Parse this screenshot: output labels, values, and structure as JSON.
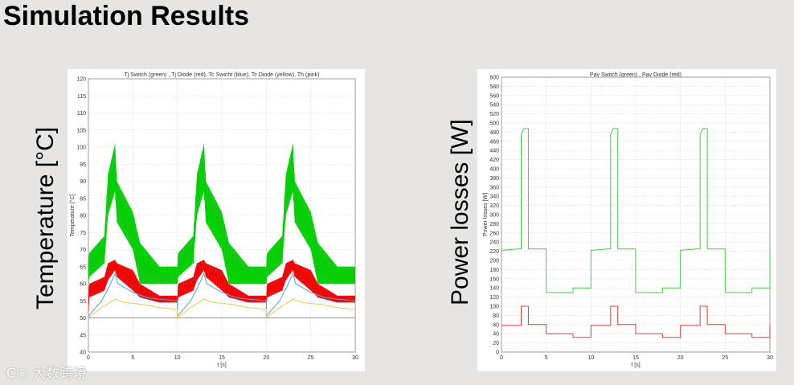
{
  "slide": {
    "title": "Simulation Results"
  },
  "labels": {
    "left_outer": "Temperature [°C]",
    "right_outer": "Power losses [W]"
  },
  "watermark": {
    "text": "大数跨境",
    "logo_text": "C○"
  },
  "chart_data": [
    {
      "id": "temperature",
      "type": "line",
      "title": "Tj Switch (green) , Tj Diode (red), Tc Swicht (blue), Tc Diode (yellow), Th (pink)",
      "xlabel": "t [s]",
      "ylabel": "Temperature [°C]",
      "xlim": [
        0,
        30
      ],
      "ylim": [
        40,
        120
      ],
      "xticks": [
        0,
        5,
        10,
        15,
        20,
        25,
        30
      ],
      "yticks": [
        40,
        45,
        50,
        55,
        60,
        65,
        70,
        75,
        80,
        85,
        90,
        95,
        100,
        105,
        110,
        115,
        120
      ],
      "grid": true,
      "colors": {
        "green": "#00cc00",
        "red": "#ee0000",
        "blue": "#55aadd",
        "yellow": "#f0c860",
        "pink": "#dd66dd"
      },
      "bands": [
        {
          "name": "Tj Switch",
          "color": "#00cc00",
          "upper": [
            [
              0,
              65
            ],
            [
              0.1,
              69
            ],
            [
              1.8,
              74
            ],
            [
              2.2,
              92
            ],
            [
              3.0,
              101
            ],
            [
              3.2,
              90
            ],
            [
              5,
              81
            ],
            [
              5.8,
              72
            ],
            [
              8.0,
              65
            ]
          ],
          "lower": [
            [
              0,
              60
            ],
            [
              0.1,
              62
            ],
            [
              1.8,
              66
            ],
            [
              2.2,
              80
            ],
            [
              3.0,
              87
            ],
            [
              3.2,
              78
            ],
            [
              5,
              70
            ],
            [
              5.8,
              60
            ],
            [
              8.0,
              60
            ]
          ],
          "tail_upper": [
            [
              8.0,
              65
            ],
            [
              10,
              65
            ]
          ],
          "tail_lower": [
            [
              8.0,
              60
            ],
            [
              10,
              60
            ]
          ]
        },
        {
          "name": "Tj Diode",
          "color": "#ee0000",
          "upper": [
            [
              0,
              55
            ],
            [
              0.1,
              60
            ],
            [
              1.8,
              62
            ],
            [
              2.2,
              66
            ],
            [
              3.0,
              67
            ],
            [
              3.2,
              66
            ],
            [
              5,
              64
            ],
            [
              5.8,
              60
            ],
            [
              8.0,
              56.5
            ],
            [
              10,
              56.5
            ]
          ],
          "lower": [
            [
              0,
              52
            ],
            [
              0.1,
              56
            ],
            [
              1.8,
              58
            ],
            [
              2.2,
              61
            ],
            [
              3.0,
              64
            ],
            [
              3.2,
              62
            ],
            [
              5,
              58
            ],
            [
              5.8,
              56
            ],
            [
              8.0,
              54.5
            ],
            [
              10,
              54.5
            ]
          ]
        }
      ],
      "series": [
        {
          "name": "Tc Swicht",
          "color": "#55aadd",
          "points": [
            [
              0,
              50.5
            ],
            [
              1.5,
              55
            ],
            [
              2.3,
              59
            ],
            [
              3.0,
              63
            ],
            [
              3.3,
              60
            ],
            [
              5,
              57.5
            ],
            [
              6.5,
              56
            ],
            [
              8,
              55.5
            ],
            [
              10,
              55
            ]
          ]
        },
        {
          "name": "Tc Diode",
          "color": "#f0c860",
          "points": [
            [
              0,
              50
            ],
            [
              1.5,
              53
            ],
            [
              3.0,
              55.5
            ],
            [
              4,
              54.5
            ],
            [
              6,
              54
            ],
            [
              8,
              53
            ],
            [
              10,
              52.5
            ]
          ]
        },
        {
          "name": "Th",
          "color": "#dd66dd",
          "points": [
            [
              0,
              50
            ],
            [
              30,
              50
            ]
          ]
        }
      ],
      "period": 10,
      "last_value_green": [
        60,
        65
      ]
    },
    {
      "id": "power",
      "type": "line",
      "title": "Pav Switch (green) , Pav Diode (red)",
      "xlabel": "t [s]",
      "ylabel": "Power losses [W]",
      "xlim": [
        0,
        30
      ],
      "ylim": [
        0,
        600
      ],
      "xticks": [
        0,
        5,
        10,
        15,
        20,
        25,
        30
      ],
      "yticks": [
        0,
        20,
        40,
        60,
        80,
        100,
        120,
        140,
        160,
        180,
        200,
        220,
        240,
        260,
        280,
        300,
        320,
        340,
        360,
        380,
        400,
        420,
        440,
        460,
        480,
        500,
        520,
        540,
        560,
        580,
        600
      ],
      "grid": true,
      "series": [
        {
          "name": "Pav Switch",
          "color": "#44cc44",
          "points": [
            [
              0,
              222
            ],
            [
              1.8,
              225
            ],
            [
              2.2,
              225
            ],
            [
              2.2,
              475
            ],
            [
              2.5,
              488
            ],
            [
              3.0,
              488
            ],
            [
              3.0,
              225
            ],
            [
              5.0,
              225
            ],
            [
              5.0,
              130
            ],
            [
              8.0,
              130
            ],
            [
              8.0,
              140
            ],
            [
              10,
              140
            ]
          ]
        },
        {
          "name": "Pav Diode",
          "color": "#ee3333",
          "points": [
            [
              0,
              58
            ],
            [
              2.2,
              58
            ],
            [
              2.2,
              100
            ],
            [
              3.0,
              100
            ],
            [
              3.0,
              60
            ],
            [
              5.0,
              60
            ],
            [
              5.0,
              40
            ],
            [
              8.0,
              40
            ],
            [
              8.0,
              32
            ],
            [
              10,
              32
            ]
          ]
        }
      ],
      "period": 10
    }
  ]
}
